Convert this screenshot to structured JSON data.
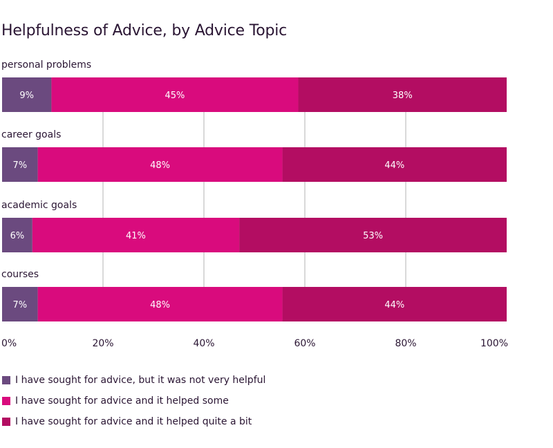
{
  "chart_data": {
    "type": "bar",
    "orientation": "horizontal",
    "stacked": true,
    "title": "Helpfulness of Advice, by Advice Topic",
    "categories": [
      "personal problems",
      "career goals",
      "academic goals",
      "courses"
    ],
    "series": [
      {
        "name": "I have sought for advice, but it was not very helpful",
        "color": "#6b4a7f",
        "values": [
          9,
          7,
          6,
          7
        ]
      },
      {
        "name": "I have sought for advice and it helped some",
        "color": "#d90b7d",
        "values": [
          45,
          48,
          41,
          48
        ]
      },
      {
        "name": "I have sought for advice and it helped quite a bit",
        "color": "#b30d62",
        "values": [
          38,
          44,
          53,
          44
        ]
      }
    ],
    "data_labels": [
      [
        "9%",
        "45%",
        "38%"
      ],
      [
        "7%",
        "48%",
        "44%"
      ],
      [
        "6%",
        "41%",
        "53%"
      ],
      [
        "7%",
        "48%",
        "44%"
      ]
    ],
    "xlim": [
      0,
      100
    ],
    "ticks": [
      0,
      20,
      40,
      60,
      80,
      100
    ],
    "tick_labels": [
      "0%",
      "20%",
      "40%",
      "60%",
      "80%",
      "100%"
    ],
    "grid": true,
    "legend_position": "bottom-left"
  }
}
